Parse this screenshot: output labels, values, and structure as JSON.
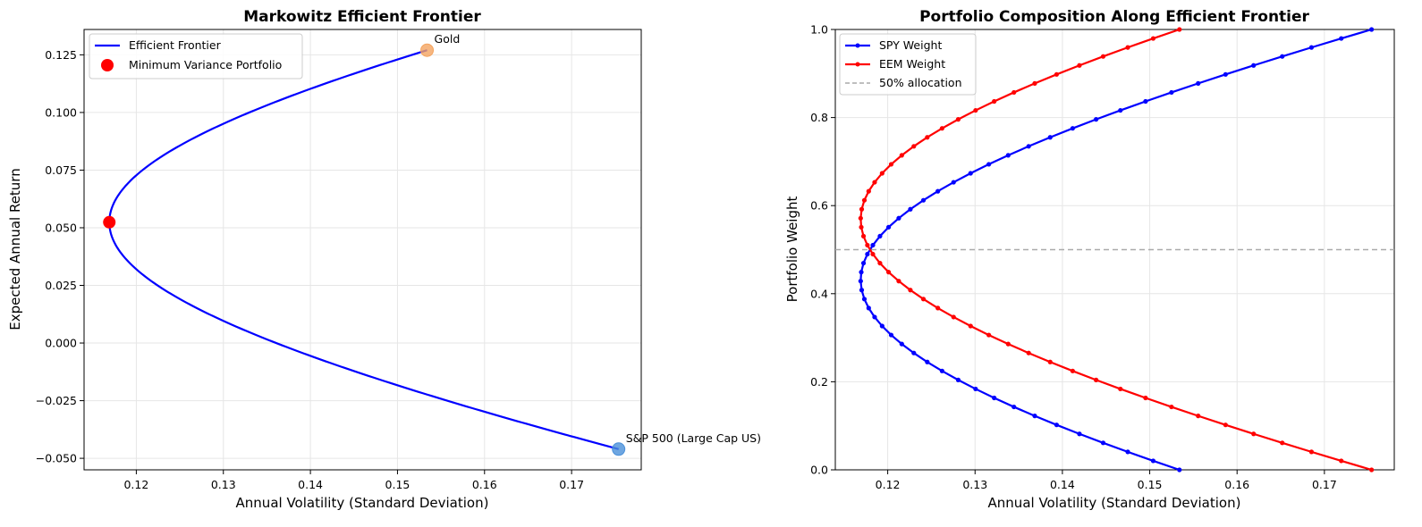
{
  "chart_data": [
    {
      "type": "line",
      "title": "Markowitz Efficient Frontier",
      "xlabel": "Annual Volatility (Standard Deviation)",
      "ylabel": "Expected Annual Return",
      "xlim": [
        0.114,
        0.178
      ],
      "ylim": [
        -0.055,
        0.136
      ],
      "xticks": [
        0.12,
        0.13,
        0.14,
        0.15,
        0.16,
        0.17
      ],
      "xtick_labels": [
        "0.12",
        "0.13",
        "0.14",
        "0.15",
        "0.16",
        "0.17"
      ],
      "yticks": [
        -0.05,
        -0.025,
        0.0,
        0.025,
        0.05,
        0.075,
        0.1,
        0.125
      ],
      "ytick_labels": [
        "−0.050",
        "−0.025",
        "0.000",
        "0.025",
        "0.050",
        "0.075",
        "0.100",
        "0.125"
      ],
      "grid": true,
      "legend_position": "upper-left",
      "frontier": {
        "name": "Efficient Frontier",
        "color": "#0000ff",
        "mu_a": 0.127,
        "mu_b": -0.046,
        "sigma_a": 0.1534,
        "sigma_b": 0.1754,
        "min_variance_return": 0.0524,
        "min_variance_sigma": 0.1169
      },
      "min_variance_portfolio": {
        "name": "Minimum Variance Portfolio",
        "x": 0.1169,
        "y": 0.0524,
        "color": "#ff0000"
      },
      "assets": [
        {
          "label": "Gold",
          "x": 0.1534,
          "y": 0.127,
          "color": "#f4a460"
        },
        {
          "label": "S&P 500 (Large Cap US)",
          "x": 0.1754,
          "y": -0.046,
          "color": "#4a90d9"
        }
      ]
    },
    {
      "type": "line",
      "title": "Portfolio Composition Along Efficient Frontier",
      "xlabel": "Annual Volatility (Standard Deviation)",
      "ylabel": "Portfolio Weight",
      "xlim": [
        0.114,
        0.178
      ],
      "ylim": [
        0,
        1
      ],
      "xticks": [
        0.12,
        0.13,
        0.14,
        0.15,
        0.16,
        0.17
      ],
      "xtick_labels": [
        "0.12",
        "0.13",
        "0.14",
        "0.15",
        "0.16",
        "0.17"
      ],
      "yticks": [
        0,
        0.2,
        0.4,
        0.6,
        0.8,
        1.0
      ],
      "ytick_labels": [
        "0.0",
        "0.2",
        "0.4",
        "0.6",
        "0.8",
        "1.0"
      ],
      "grid": true,
      "legend_position": "upper-left",
      "series": [
        {
          "name": "SPY Weight",
          "color": "#0000ff",
          "marker": "dot"
        },
        {
          "name": "EEM Weight",
          "color": "#ff0000",
          "marker": "dot"
        }
      ],
      "reference_line": {
        "name": "50% allocation",
        "y": 0.5,
        "color": "#aaaaaa",
        "style": "dashed"
      },
      "sample_points": 50
    }
  ]
}
